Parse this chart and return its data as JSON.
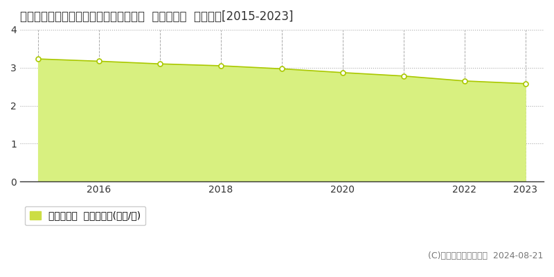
{
  "title": "奈良県吉野郡下市町大字小路９０番１外  基準地価格  地価推移[2015-2023]",
  "years": [
    2015,
    2016,
    2017,
    2018,
    2019,
    2020,
    2021,
    2022,
    2023
  ],
  "values": [
    3.23,
    3.17,
    3.1,
    3.05,
    2.97,
    2.87,
    2.78,
    2.65,
    2.58
  ],
  "ylim": [
    0,
    4
  ],
  "yticks": [
    0,
    1,
    2,
    3,
    4
  ],
  "line_color": "#aac800",
  "fill_color": "#d8f080",
  "marker_face": "#ffffff",
  "marker_edge": "#aac800",
  "grid_color": "#aaaaaa",
  "bg_color": "#ffffff",
  "legend_label": "基準地価格  平均坪単価(万円/坪)",
  "legend_marker_color": "#ccdd44",
  "copyright_text": "(C)土地価格ドットコム  2024-08-21",
  "title_fontsize": 12,
  "tick_fontsize": 10,
  "legend_fontsize": 10,
  "copyright_fontsize": 9
}
